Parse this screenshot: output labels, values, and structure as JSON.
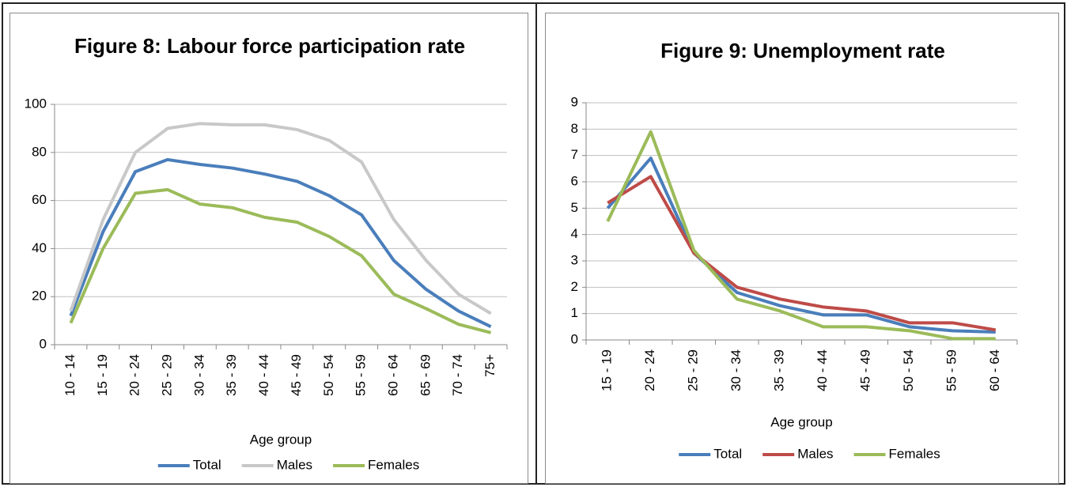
{
  "chart_data": [
    {
      "type": "line",
      "title": "Figure 8: Labour force participation rate",
      "x_label": "Age group",
      "categories": [
        "10 - 14",
        "15 - 19",
        "20 - 24",
        "25 - 29",
        "30 - 34",
        "35 - 39",
        "40 - 44",
        "45 - 49",
        "50 - 54",
        "55 - 59",
        "60 - 64",
        "65 - 69",
        "70 - 74",
        "75+"
      ],
      "series": [
        {
          "name": "Total",
          "color": "#4a7ebb",
          "values": [
            12,
            47,
            72,
            77,
            75,
            73.5,
            71,
            68,
            62,
            54,
            35,
            23,
            14,
            7.5
          ]
        },
        {
          "name": "Males",
          "color": "#c8c8c8",
          "values": [
            14,
            52,
            80,
            90,
            92,
            91.5,
            91.5,
            89.5,
            85,
            76,
            52,
            35,
            21,
            13
          ]
        },
        {
          "name": "Females",
          "color": "#9bbb59",
          "values": [
            9,
            40,
            63,
            64.5,
            58.5,
            57,
            53,
            51,
            45,
            37,
            21,
            15,
            8.5,
            5
          ]
        }
      ],
      "ylim": [
        0,
        100
      ],
      "yticks": [
        0,
        20,
        40,
        60,
        80,
        100
      ],
      "grid": true,
      "legend": "bottom"
    },
    {
      "type": "line",
      "title": "Figure 9: Unemployment rate",
      "x_label": "Age group",
      "categories": [
        "15 - 19",
        "20 - 24",
        "25 - 29",
        "30 - 34",
        "35 - 39",
        "40 - 44",
        "45 - 49",
        "50 - 54",
        "55 - 59",
        "60 - 64"
      ],
      "series": [
        {
          "name": "Total",
          "color": "#4a7ebb",
          "values": [
            5,
            6.9,
            3.3,
            1.8,
            1.3,
            0.95,
            0.95,
            0.5,
            0.35,
            0.3
          ]
        },
        {
          "name": "Males",
          "color": "#be4b48",
          "values": [
            5.2,
            6.2,
            3.3,
            2.0,
            1.55,
            1.25,
            1.1,
            0.65,
            0.65,
            0.38
          ]
        },
        {
          "name": "Females",
          "color": "#9bbb59",
          "values": [
            4.5,
            7.9,
            3.4,
            1.55,
            1.1,
            0.5,
            0.5,
            0.35,
            0.05,
            0.05
          ]
        }
      ],
      "ylim": [
        0,
        9
      ],
      "yticks": [
        0,
        1,
        2,
        3,
        4,
        5,
        6,
        7,
        8,
        9
      ],
      "grid": true,
      "legend": "bottom"
    }
  ]
}
